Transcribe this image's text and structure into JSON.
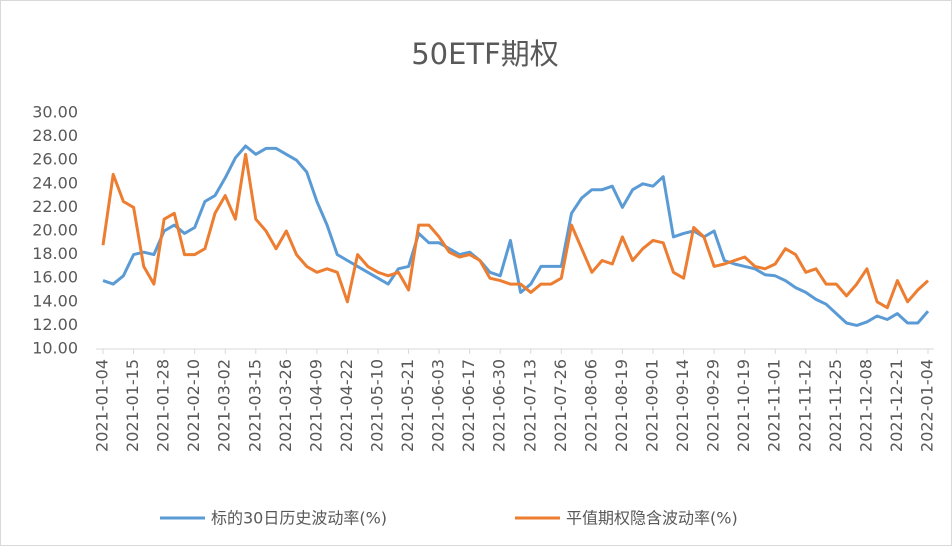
{
  "chart_data": {
    "type": "line",
    "title": "50ETF期权",
    "categories": [
      "2021-01-04",
      null,
      null,
      "2021-01-15",
      null,
      null,
      "2021-01-28",
      null,
      null,
      "2021-02-10",
      null,
      null,
      "2021-03-02",
      null,
      null,
      "2021-03-15",
      null,
      null,
      "2021-03-26",
      null,
      null,
      "2021-04-09",
      null,
      null,
      "2021-04-22",
      null,
      null,
      "2021-05-10",
      null,
      null,
      "2021-05-21",
      null,
      null,
      "2021-06-03",
      null,
      null,
      "2021-06-17",
      null,
      null,
      "2021-06-30",
      null,
      null,
      "2021-07-13",
      null,
      null,
      "2021-07-26",
      null,
      null,
      "2021-08-06",
      null,
      null,
      "2021-08-19",
      null,
      null,
      "2021-09-01",
      null,
      null,
      "2021-09-14",
      null,
      null,
      "2021-09-29",
      null,
      null,
      "2021-10-19",
      null,
      null,
      "2021-11-01",
      null,
      null,
      "2021-11-12",
      null,
      null,
      "2021-11-25",
      null,
      null,
      "2021-12-08",
      null,
      null,
      "2021-12-21",
      null,
      null,
      "2022-01-04"
    ],
    "series": [
      {
        "name": "标的30日历史波动率(%)",
        "color": "#5b9bd5",
        "values": [
          15.8,
          15.5,
          16.2,
          18.0,
          18.2,
          18.0,
          20.0,
          20.5,
          19.8,
          20.3,
          22.5,
          23.0,
          24.5,
          26.2,
          27.2,
          26.5,
          27.0,
          27.0,
          26.5,
          26.0,
          25.0,
          22.5,
          20.5,
          18.0,
          17.5,
          17.0,
          16.5,
          16.0,
          15.5,
          16.8,
          17.0,
          19.8,
          19.0,
          19.0,
          18.5,
          18.0,
          18.2,
          17.5,
          16.5,
          16.2,
          19.2,
          14.8,
          15.5,
          17.0,
          17.0,
          17.0,
          21.5,
          22.8,
          23.5,
          23.5,
          23.8,
          22.0,
          23.5,
          24.0,
          23.8,
          24.6,
          19.5,
          19.8,
          20.0,
          19.5,
          20.0,
          17.5,
          17.2,
          17.0,
          16.8,
          16.3,
          16.2,
          15.8,
          15.2,
          14.8,
          14.2,
          13.8,
          13.0,
          12.2,
          12.0,
          12.3,
          12.8,
          12.5,
          13.0,
          12.2,
          12.2,
          13.2
        ]
      },
      {
        "name": "平值期权隐含波动率(%)",
        "color": "#ed7d31",
        "values": [
          18.8,
          24.8,
          22.5,
          22.0,
          17.0,
          15.5,
          21.0,
          21.5,
          18.0,
          18.0,
          18.5,
          21.5,
          23.0,
          21.0,
          26.5,
          21.0,
          20.0,
          18.5,
          20.0,
          18.0,
          17.0,
          16.5,
          16.8,
          16.5,
          14.0,
          18.0,
          17.0,
          16.5,
          16.2,
          16.5,
          15.0,
          20.5,
          20.5,
          19.5,
          18.2,
          17.8,
          18.0,
          17.5,
          16.0,
          15.8,
          15.5,
          15.5,
          14.8,
          15.5,
          15.5,
          16.0,
          20.5,
          18.5,
          16.5,
          17.5,
          17.2,
          19.5,
          17.5,
          18.5,
          19.2,
          19.0,
          16.5,
          16.0,
          20.3,
          19.5,
          17.0,
          17.2,
          17.5,
          17.8,
          17.0,
          16.8,
          17.2,
          18.5,
          18.0,
          16.5,
          16.8,
          15.5,
          15.5,
          14.5,
          15.5,
          16.8,
          14.0,
          13.5,
          15.8,
          14.0,
          15.0,
          15.8
        ]
      }
    ],
    "ylim": [
      10,
      30
    ],
    "yticks": [
      {
        "value": 10,
        "label": "10.00"
      },
      {
        "value": 12,
        "label": "12.00"
      },
      {
        "value": 14,
        "label": "14.00"
      },
      {
        "value": 16,
        "label": "16.00"
      },
      {
        "value": 18,
        "label": "18.00"
      },
      {
        "value": 20,
        "label": "20.00"
      },
      {
        "value": 22,
        "label": "22.00"
      },
      {
        "value": 24,
        "label": "24.00"
      },
      {
        "value": 26,
        "label": "26.00"
      },
      {
        "value": 28,
        "label": "28.00"
      },
      {
        "value": 30,
        "label": "30.00"
      }
    ],
    "grid": false,
    "legend": "bottom"
  }
}
